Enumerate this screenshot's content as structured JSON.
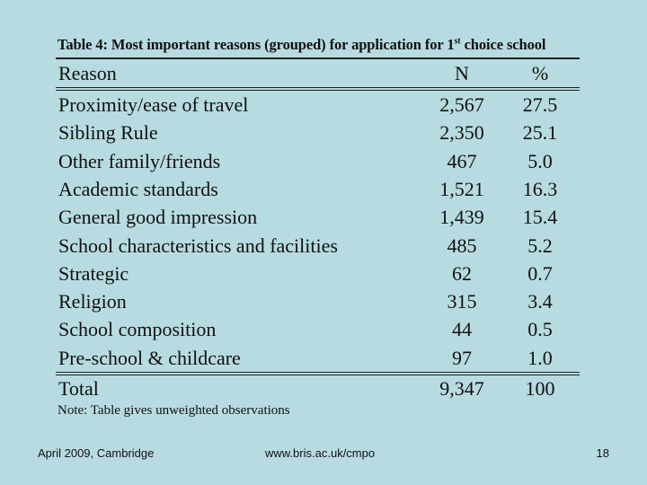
{
  "table": {
    "title_main": "Table 4: Most important reasons (grouped) for application for 1",
    "title_sup": "st",
    "title_end": " choice school",
    "headers": {
      "reason": "Reason",
      "n": "N",
      "pct": "%"
    },
    "rows": [
      {
        "reason": "Proximity/ease of travel",
        "n": "2,567",
        "pct": "27.5"
      },
      {
        "reason": "Sibling Rule",
        "n": "2,350",
        "pct": "25.1"
      },
      {
        "reason": "Other family/friends",
        "n": "467",
        "pct": "5.0"
      },
      {
        "reason": "Academic standards",
        "n": "1,521",
        "pct": "16.3"
      },
      {
        "reason": "General good impression",
        "n": "1,439",
        "pct": "15.4"
      },
      {
        "reason": "School characteristics and facilities",
        "n": "485",
        "pct": "5.2"
      },
      {
        "reason": "Strategic",
        "n": "62",
        "pct": "0.7"
      },
      {
        "reason": "Religion",
        "n": "315",
        "pct": "3.4"
      },
      {
        "reason": "School composition",
        "n": "44",
        "pct": "0.5"
      },
      {
        "reason": "Pre-school & childcare",
        "n": "97",
        "pct": "1.0"
      }
    ],
    "total": {
      "reason": "Total",
      "n": "9,347",
      "pct": "100"
    },
    "note": "Note: Table gives unweighted observations"
  },
  "footer": {
    "left": "April 2009, Cambridge",
    "middle": "www.bris.ac.uk/cmpo",
    "page": "18"
  },
  "colors": {
    "background": "#b7dbe1",
    "text": "#111111"
  }
}
